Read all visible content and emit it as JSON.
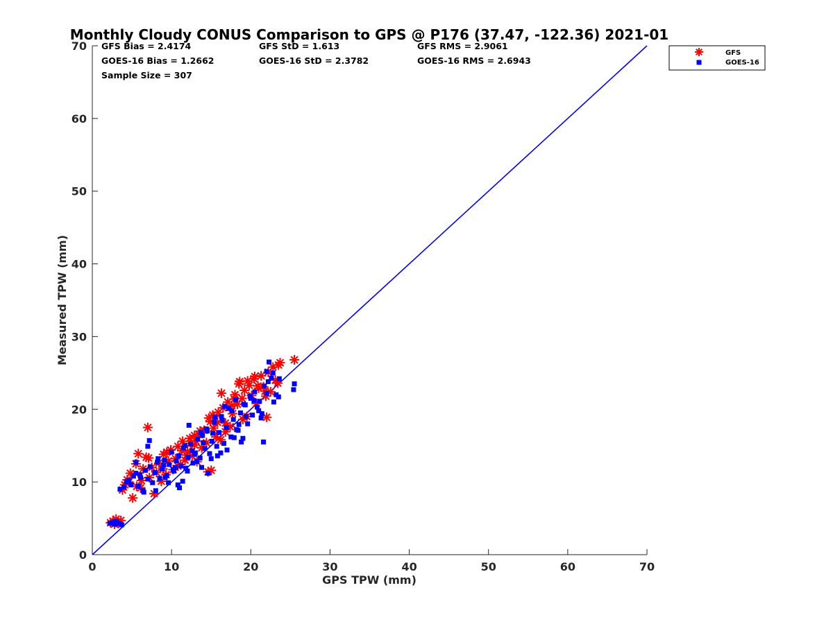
{
  "chart_data": {
    "type": "scatter",
    "title": "Monthly Cloudy CONUS Comparison to GPS @ P176 (37.47, -122.36) 2021-01",
    "xlabel": "GPS TPW (mm)",
    "ylabel": "Measured TPW (mm)",
    "xlim": [
      0,
      70
    ],
    "ylim": [
      0,
      70
    ],
    "xticks": [
      "0",
      "10",
      "20",
      "30",
      "40",
      "50",
      "60",
      "70"
    ],
    "yticks": [
      "0",
      "10",
      "20",
      "30",
      "40",
      "50",
      "60",
      "70"
    ],
    "grid": false,
    "legend_position": "outside-top-right",
    "stats": [
      [
        "GFS Bias = 2.4174",
        "GFS StD = 1.613",
        "GFS RMS = 2.9061"
      ],
      [
        "GOES-16 Bias = 1.2662",
        "GOES-16 StD = 2.3782",
        "GOES-16 RMS = 2.6943"
      ],
      [
        "Sample Size = 307"
      ]
    ],
    "reference_line": {
      "x": [
        0,
        70
      ],
      "y": [
        0,
        70
      ],
      "color": "#0000ff"
    },
    "series": [
      {
        "name": "GFS",
        "marker": "asterisk",
        "color": "#ff0000",
        "x": [
          2.3,
          2.6,
          3.0,
          3.3,
          3.6,
          3.2,
          2.8,
          3.8,
          4.1,
          4.4,
          4.8,
          5.1,
          5.5,
          5.8,
          6.1,
          6.4,
          6.8,
          7.0,
          7.2,
          7.5,
          7.8,
          8.1,
          8.4,
          8.7,
          9.0,
          9.3,
          9.6,
          9.9,
          10.2,
          10.5,
          10.8,
          11.1,
          11.4,
          11.7,
          12.0,
          12.3,
          12.6,
          12.9,
          13.2,
          13.5,
          13.8,
          14.1,
          14.4,
          14.7,
          15.0,
          15.3,
          15.6,
          15.9,
          16.2,
          16.5,
          16.8,
          17.1,
          17.4,
          17.7,
          18.0,
          18.3,
          18.6,
          18.9,
          19.2,
          19.5,
          19.8,
          20.1,
          20.4,
          20.7,
          21.0,
          21.3,
          21.6,
          21.9,
          22.2,
          22.5,
          22.8,
          23.1,
          23.4,
          23.7,
          25.5,
          14.6,
          15.2,
          18.5,
          19.0,
          20.5,
          22.0,
          5.6,
          6.2,
          7.1,
          9.4,
          10.8,
          12.4,
          13.6,
          14.9,
          16.3,
          17.6,
          21.8,
          23.5,
          4.6,
          8.9,
          11.3,
          12.9,
          15.8,
          17.9,
          19.6,
          20.9,
          16.8,
          13.1,
          11.9
        ],
        "y": [
          4.4,
          4.6,
          4.9,
          4.3,
          4.7,
          4.5,
          4.2,
          8.9,
          9.6,
          10.3,
          11.2,
          7.8,
          12.5,
          13.9,
          9.2,
          11.8,
          13.4,
          17.5,
          10.6,
          12.0,
          8.4,
          11.3,
          12.6,
          10.1,
          13.8,
          11.0,
          12.9,
          14.4,
          11.7,
          13.2,
          14.9,
          12.4,
          15.6,
          13.0,
          14.2,
          16.0,
          13.6,
          15.1,
          12.8,
          16.5,
          14.7,
          17.1,
          15.4,
          18.8,
          11.6,
          17.4,
          16.2,
          19.6,
          15.8,
          20.2,
          18.1,
          21.0,
          17.6,
          19.4,
          22.0,
          20.7,
          23.8,
          21.5,
          22.6,
          19.0,
          23.3,
          21.9,
          24.2,
          20.8,
          22.9,
          24.6,
          23.1,
          21.8,
          25.1,
          22.4,
          25.8,
          24.0,
          23.6,
          26.4,
          26.8,
          11.4,
          19.2,
          23.5,
          18.6,
          24.5,
          18.9,
          9.4,
          10.2,
          13.3,
          14.1,
          12.2,
          15.3,
          17.0,
          18.3,
          22.2,
          20.5,
          22.5,
          26.1,
          10.0,
          11.8,
          14.3,
          16.4,
          18.2,
          21.4,
          23.9,
          23.2,
          16.9,
          15.6,
          13.7
        ]
      },
      {
        "name": "GOES-16",
        "marker": "square",
        "color": "#0000ff",
        "x": [
          2.2,
          2.5,
          2.8,
          3.1,
          3.4,
          3.7,
          2.9,
          3.5,
          4.0,
          4.3,
          4.6,
          4.9,
          5.2,
          5.5,
          5.8,
          6.1,
          6.4,
          6.7,
          7.0,
          7.3,
          7.6,
          7.9,
          8.2,
          8.5,
          8.8,
          9.1,
          9.4,
          9.7,
          10.0,
          10.3,
          10.6,
          10.9,
          11.2,
          11.5,
          11.8,
          12.1,
          12.4,
          12.7,
          13.0,
          13.3,
          13.6,
          13.9,
          14.2,
          14.5,
          14.8,
          15.1,
          15.4,
          15.7,
          16.0,
          16.3,
          16.6,
          16.9,
          17.2,
          17.5,
          17.8,
          18.1,
          18.4,
          18.7,
          19.0,
          19.3,
          19.6,
          19.9,
          20.2,
          20.5,
          20.8,
          21.1,
          21.4,
          21.7,
          22.0,
          22.3,
          22.6,
          22.9,
          23.2,
          23.5,
          25.5,
          25.4,
          7.2,
          7.0,
          5.5,
          6.0,
          8.3,
          9.0,
          10.8,
          11.4,
          12.0,
          12.6,
          13.2,
          14.0,
          14.6,
          15.2,
          15.8,
          16.4,
          17.0,
          17.6,
          18.2,
          18.8,
          19.4,
          20.4,
          21.0,
          21.6,
          22.2,
          22.8,
          23.6,
          6.5,
          8.0,
          9.6,
          10.5,
          11.7,
          12.9,
          13.7,
          14.4,
          15.5,
          16.7,
          17.9,
          18.5,
          19.1,
          20.0,
          21.3,
          22.0,
          12.2,
          13.8,
          15.0,
          16.2,
          9.2,
          10.2,
          11.0
        ],
        "y": [
          4.3,
          4.4,
          4.2,
          4.5,
          4.3,
          4.1,
          4.6,
          9.0,
          9.3,
          10.0,
          10.2,
          9.6,
          10.8,
          11.2,
          9.4,
          10.6,
          8.8,
          11.6,
          10.4,
          12.1,
          9.9,
          11.3,
          12.7,
          10.5,
          11.8,
          13.0,
          10.9,
          12.4,
          14.1,
          11.5,
          12.9,
          13.6,
          12.2,
          14.7,
          11.9,
          13.4,
          15.2,
          12.6,
          14.0,
          15.9,
          13.3,
          16.4,
          14.6,
          17.0,
          13.9,
          15.6,
          18.2,
          14.9,
          16.8,
          19.0,
          15.3,
          17.5,
          20.1,
          16.2,
          18.6,
          21.3,
          17.1,
          19.5,
          16.0,
          20.6,
          18.0,
          21.8,
          19.2,
          22.4,
          20.3,
          21.1,
          19.4,
          23.2,
          22.2,
          26.5,
          24.3,
          21.0,
          22.0,
          21.7,
          23.5,
          22.7,
          15.7,
          14.9,
          12.7,
          11.0,
          13.2,
          12.3,
          9.6,
          10.1,
          11.5,
          14.3,
          12.8,
          15.4,
          11.2,
          16.7,
          13.6,
          18.5,
          14.4,
          19.8,
          17.2,
          15.5,
          19.0,
          21.2,
          19.8,
          15.5,
          23.8,
          25.0,
          24.2,
          8.6,
          8.8,
          9.9,
          12.0,
          15.0,
          13.8,
          16.8,
          17.3,
          18.9,
          20.4,
          16.1,
          17.9,
          20.7,
          21.5,
          18.8,
          25.2,
          17.8,
          12.0,
          13.2,
          14.0,
          10.6,
          11.7,
          9.2
        ]
      }
    ]
  }
}
